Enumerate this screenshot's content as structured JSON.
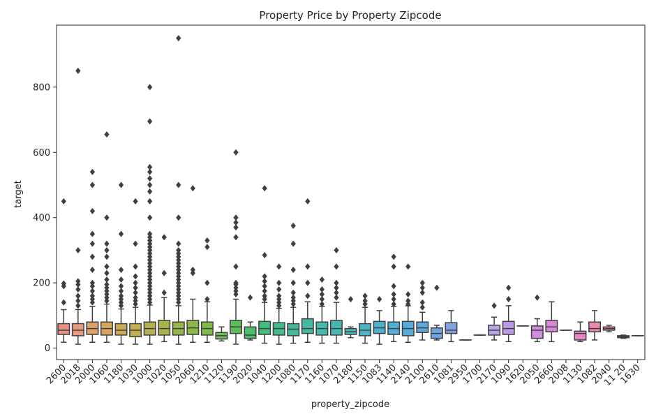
{
  "chart_data": {
    "type": "box",
    "title": "Property Price by Property Zipcode",
    "xlabel": "property_zipcode",
    "ylabel": "target",
    "ylim": [
      -35,
      990
    ],
    "yticks": [
      0,
      200,
      400,
      600,
      800
    ],
    "categories": [
      "2600",
      "2018",
      "2000",
      "1060",
      "1180",
      "1030",
      "1000",
      "1020",
      "1050",
      "2060",
      "1210",
      "1120",
      "1190",
      "2020",
      "1040",
      "1200",
      "1080",
      "1170",
      "1160",
      "1070",
      "2180",
      "1150",
      "1083",
      "1140",
      "2140",
      "2100",
      "2610",
      "1081",
      "2950",
      "1700",
      "2170",
      "1090",
      "1620",
      "2050",
      "2660",
      "2008",
      "1130",
      "1082",
      "2040",
      "11 20",
      "1630"
    ],
    "colors": [
      "#ea8f86",
      "#e79a7d",
      "#dfa16a",
      "#d7a65d",
      "#cdaa55",
      "#c3ae53",
      "#b6b150",
      "#a8b34c",
      "#9ab64b",
      "#8db94a",
      "#7fba4b",
      "#71bc4f",
      "#5dbf58",
      "#4cbf6b",
      "#42bd7e",
      "#42bc8b",
      "#43bb98",
      "#45baa2",
      "#47b9ad",
      "#49b8b5",
      "#4ab6bd",
      "#4bb4c5",
      "#4db2cd",
      "#50b0d4",
      "#57add9",
      "#5fa9de",
      "#69a6e2",
      "#7fa3e4",
      "#9bb0e6",
      "#b0b2e8",
      "#b6a6e8",
      "#bd99e8",
      "#c78fe6",
      "#d08be3",
      "#d987db",
      "#e085d0",
      "#e488c0",
      "#e88ab0",
      "#e98c9f",
      "#ea8c92",
      "#eb8b8b"
    ],
    "boxes": [
      {
        "q1": 42,
        "median": 55,
        "q3": 75,
        "whislo": 18,
        "whishi": 118,
        "fliers": [
          140,
          190,
          198,
          450
        ]
      },
      {
        "q1": 38,
        "median": 55,
        "q3": 75,
        "whislo": 12,
        "whishi": 118,
        "fliers": [
          130,
          145,
          160,
          180,
          195,
          205,
          300,
          850
        ]
      },
      {
        "q1": 42,
        "median": 60,
        "q3": 80,
        "whislo": 18,
        "whishi": 128,
        "fliers": [
          140,
          150,
          160,
          175,
          190,
          200,
          240,
          280,
          320,
          350,
          420,
          500,
          540
        ]
      },
      {
        "q1": 40,
        "median": 60,
        "q3": 80,
        "whislo": 18,
        "whishi": 135,
        "fliers": [
          145,
          155,
          165,
          175,
          185,
          195,
          210,
          230,
          250,
          280,
          300,
          320,
          400,
          655
        ]
      },
      {
        "q1": 40,
        "median": 55,
        "q3": 75,
        "whislo": 12,
        "whishi": 120,
        "fliers": [
          130,
          140,
          150,
          160,
          175,
          190,
          210,
          240,
          350,
          500
        ]
      },
      {
        "q1": 35,
        "median": 55,
        "q3": 75,
        "whislo": 12,
        "whishi": 125,
        "fliers": [
          135,
          145,
          155,
          170,
          185,
          200,
          220,
          250,
          320,
          450
        ]
      },
      {
        "q1": 40,
        "median": 60,
        "q3": 80,
        "whislo": 12,
        "whishi": 132,
        "fliers": [
          140,
          150,
          160,
          170,
          180,
          190,
          200,
          210,
          220,
          230,
          240,
          250,
          260,
          270,
          280,
          290,
          300,
          310,
          320,
          330,
          340,
          350,
          400,
          450,
          480,
          500,
          520,
          540,
          555,
          695,
          800
        ]
      },
      {
        "q1": 40,
        "median": 60,
        "q3": 85,
        "whislo": 20,
        "whishi": 155,
        "fliers": [
          170,
          230,
          340
        ]
      },
      {
        "q1": 40,
        "median": 60,
        "q3": 80,
        "whislo": 12,
        "whishi": 130,
        "fliers": [
          140,
          150,
          160,
          170,
          180,
          190,
          200,
          210,
          220,
          230,
          240,
          250,
          260,
          270,
          280,
          290,
          300,
          320,
          400,
          500,
          950
        ]
      },
      {
        "q1": 42,
        "median": 62,
        "q3": 85,
        "whislo": 18,
        "whishi": 150,
        "fliers": [
          230,
          240,
          490
        ]
      },
      {
        "q1": 40,
        "median": 60,
        "q3": 80,
        "whislo": 18,
        "whishi": 142,
        "fliers": [
          150,
          200,
          310,
          330
        ]
      },
      {
        "q1": 28,
        "median": 38,
        "q3": 48,
        "whislo": 22,
        "whishi": 65,
        "fliers": []
      },
      {
        "q1": 45,
        "median": 65,
        "q3": 85,
        "whislo": 12,
        "whishi": 150,
        "fliers": [
          165,
          175,
          185,
          195,
          200,
          250,
          340,
          370,
          385,
          400,
          600
        ]
      },
      {
        "q1": 30,
        "median": 40,
        "q3": 65,
        "whislo": 25,
        "whishi": 80,
        "fliers": [
          155
        ]
      },
      {
        "q1": 42,
        "median": 60,
        "q3": 82,
        "whislo": 15,
        "whishi": 140,
        "fliers": [
          150,
          160,
          175,
          190,
          205,
          220,
          285,
          490
        ]
      },
      {
        "q1": 40,
        "median": 60,
        "q3": 78,
        "whislo": 12,
        "whishi": 122,
        "fliers": [
          130,
          140,
          150,
          160,
          180,
          200,
          250
        ]
      },
      {
        "q1": 38,
        "median": 58,
        "q3": 75,
        "whislo": 15,
        "whishi": 125,
        "fliers": [
          135,
          145,
          155,
          170,
          200,
          240,
          320,
          375
        ]
      },
      {
        "q1": 45,
        "median": 60,
        "q3": 90,
        "whislo": 18,
        "whishi": 142,
        "fliers": [
          160,
          200,
          250,
          450
        ]
      },
      {
        "q1": 40,
        "median": 60,
        "q3": 80,
        "whislo": 15,
        "whishi": 128,
        "fliers": [
          135,
          150,
          165,
          180,
          210
        ]
      },
      {
        "q1": 40,
        "median": 60,
        "q3": 85,
        "whislo": 15,
        "whishi": 140,
        "fliers": [
          155,
          170,
          185,
          200,
          250,
          300
        ]
      },
      {
        "q1": 42,
        "median": 50,
        "q3": 60,
        "whislo": 32,
        "whishi": 65,
        "fliers": [
          150
        ]
      },
      {
        "q1": 38,
        "median": 55,
        "q3": 75,
        "whislo": 15,
        "whishi": 125,
        "fliers": [
          135,
          145,
          160
        ]
      },
      {
        "q1": 45,
        "median": 62,
        "q3": 82,
        "whislo": 12,
        "whishi": 115,
        "fliers": [
          150
        ]
      },
      {
        "q1": 42,
        "median": 60,
        "q3": 80,
        "whislo": 20,
        "whishi": 128,
        "fliers": [
          135,
          150,
          165,
          190,
          250,
          280
        ]
      },
      {
        "q1": 38,
        "median": 60,
        "q3": 82,
        "whislo": 18,
        "whishi": 130,
        "fliers": [
          135,
          145,
          165,
          250
        ]
      },
      {
        "q1": 48,
        "median": 62,
        "q3": 80,
        "whislo": 25,
        "whishi": 110,
        "fliers": [
          125,
          140,
          170,
          185,
          200
        ]
      },
      {
        "q1": 30,
        "median": 45,
        "q3": 62,
        "whislo": 25,
        "whishi": 70,
        "fliers": [
          185
        ]
      },
      {
        "q1": 45,
        "median": 55,
        "q3": 78,
        "whislo": 20,
        "whishi": 115,
        "fliers": []
      },
      {
        "q1": 25,
        "median": 25,
        "q3": 25,
        "whislo": 25,
        "whishi": 25,
        "fliers": []
      },
      {
        "q1": 40,
        "median": 40,
        "q3": 40,
        "whislo": 40,
        "whishi": 40,
        "fliers": []
      },
      {
        "q1": 40,
        "median": 55,
        "q3": 70,
        "whislo": 25,
        "whishi": 95,
        "fliers": [
          130
        ]
      },
      {
        "q1": 42,
        "median": 60,
        "q3": 82,
        "whislo": 20,
        "whishi": 130,
        "fliers": [
          150,
          185
        ]
      },
      {
        "q1": 68,
        "median": 68,
        "q3": 68,
        "whislo": 68,
        "whishi": 68,
        "fliers": []
      },
      {
        "q1": 30,
        "median": 55,
        "q3": 68,
        "whislo": 20,
        "whishi": 90,
        "fliers": [
          155
        ]
      },
      {
        "q1": 50,
        "median": 65,
        "q3": 85,
        "whislo": 20,
        "whishi": 142,
        "fliers": []
      },
      {
        "q1": 55,
        "median": 55,
        "q3": 55,
        "whislo": 55,
        "whishi": 55,
        "fliers": []
      },
      {
        "q1": 25,
        "median": 45,
        "q3": 52,
        "whislo": 20,
        "whishi": 80,
        "fliers": []
      },
      {
        "q1": 50,
        "median": 60,
        "q3": 80,
        "whislo": 25,
        "whishi": 115,
        "fliers": []
      },
      {
        "q1": 55,
        "median": 60,
        "q3": 65,
        "whislo": 50,
        "whishi": 70,
        "fliers": []
      },
      {
        "q1": 32,
        "median": 35,
        "q3": 38,
        "whislo": 30,
        "whishi": 40,
        "fliers": []
      },
      {
        "q1": 38,
        "median": 38,
        "q3": 38,
        "whislo": 38,
        "whishi": 38,
        "fliers": []
      }
    ],
    "grid": false,
    "legend": "none"
  }
}
